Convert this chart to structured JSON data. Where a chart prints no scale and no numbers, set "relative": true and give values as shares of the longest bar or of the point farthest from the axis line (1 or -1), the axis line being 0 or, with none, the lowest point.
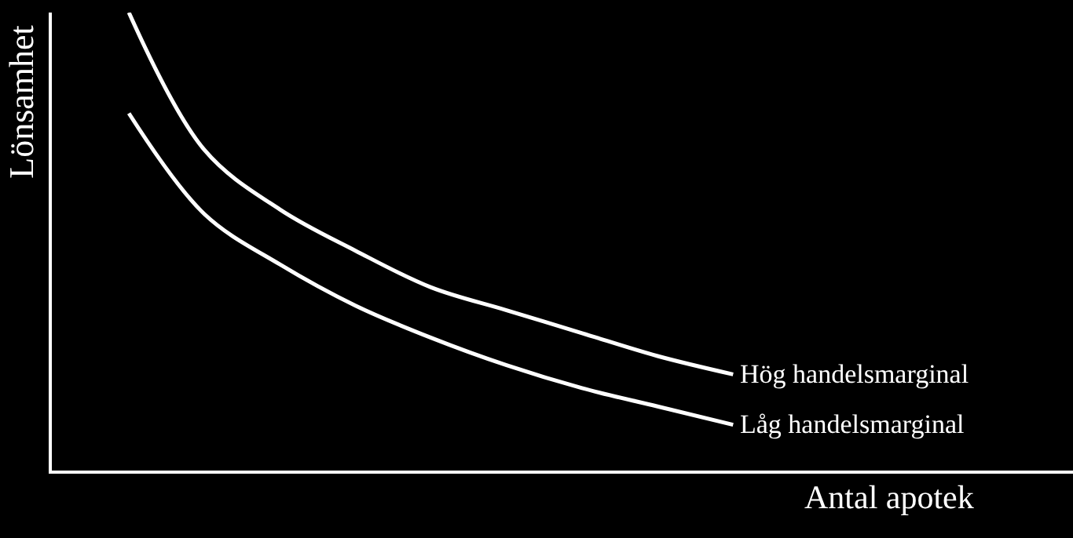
{
  "chart_data": {
    "type": "line",
    "relative": true,
    "xlabel": "Antal apotek",
    "ylabel": "Lönsamhet",
    "categories": [
      null,
      null,
      null,
      null,
      null,
      null,
      null,
      null,
      null
    ],
    "series": [
      {
        "name": "Hög handelsmarginal",
        "color": "#ffffff",
        "values": [
          1.0,
          0.7,
          0.57,
          0.48,
          0.4,
          0.35,
          0.3,
          0.25,
          0.21
        ]
      },
      {
        "name": "Låg handelsmarginal",
        "color": "#ffffff",
        "values": [
          0.78,
          0.56,
          0.45,
          0.36,
          0.29,
          0.23,
          0.18,
          0.14,
          0.1
        ]
      }
    ]
  }
}
